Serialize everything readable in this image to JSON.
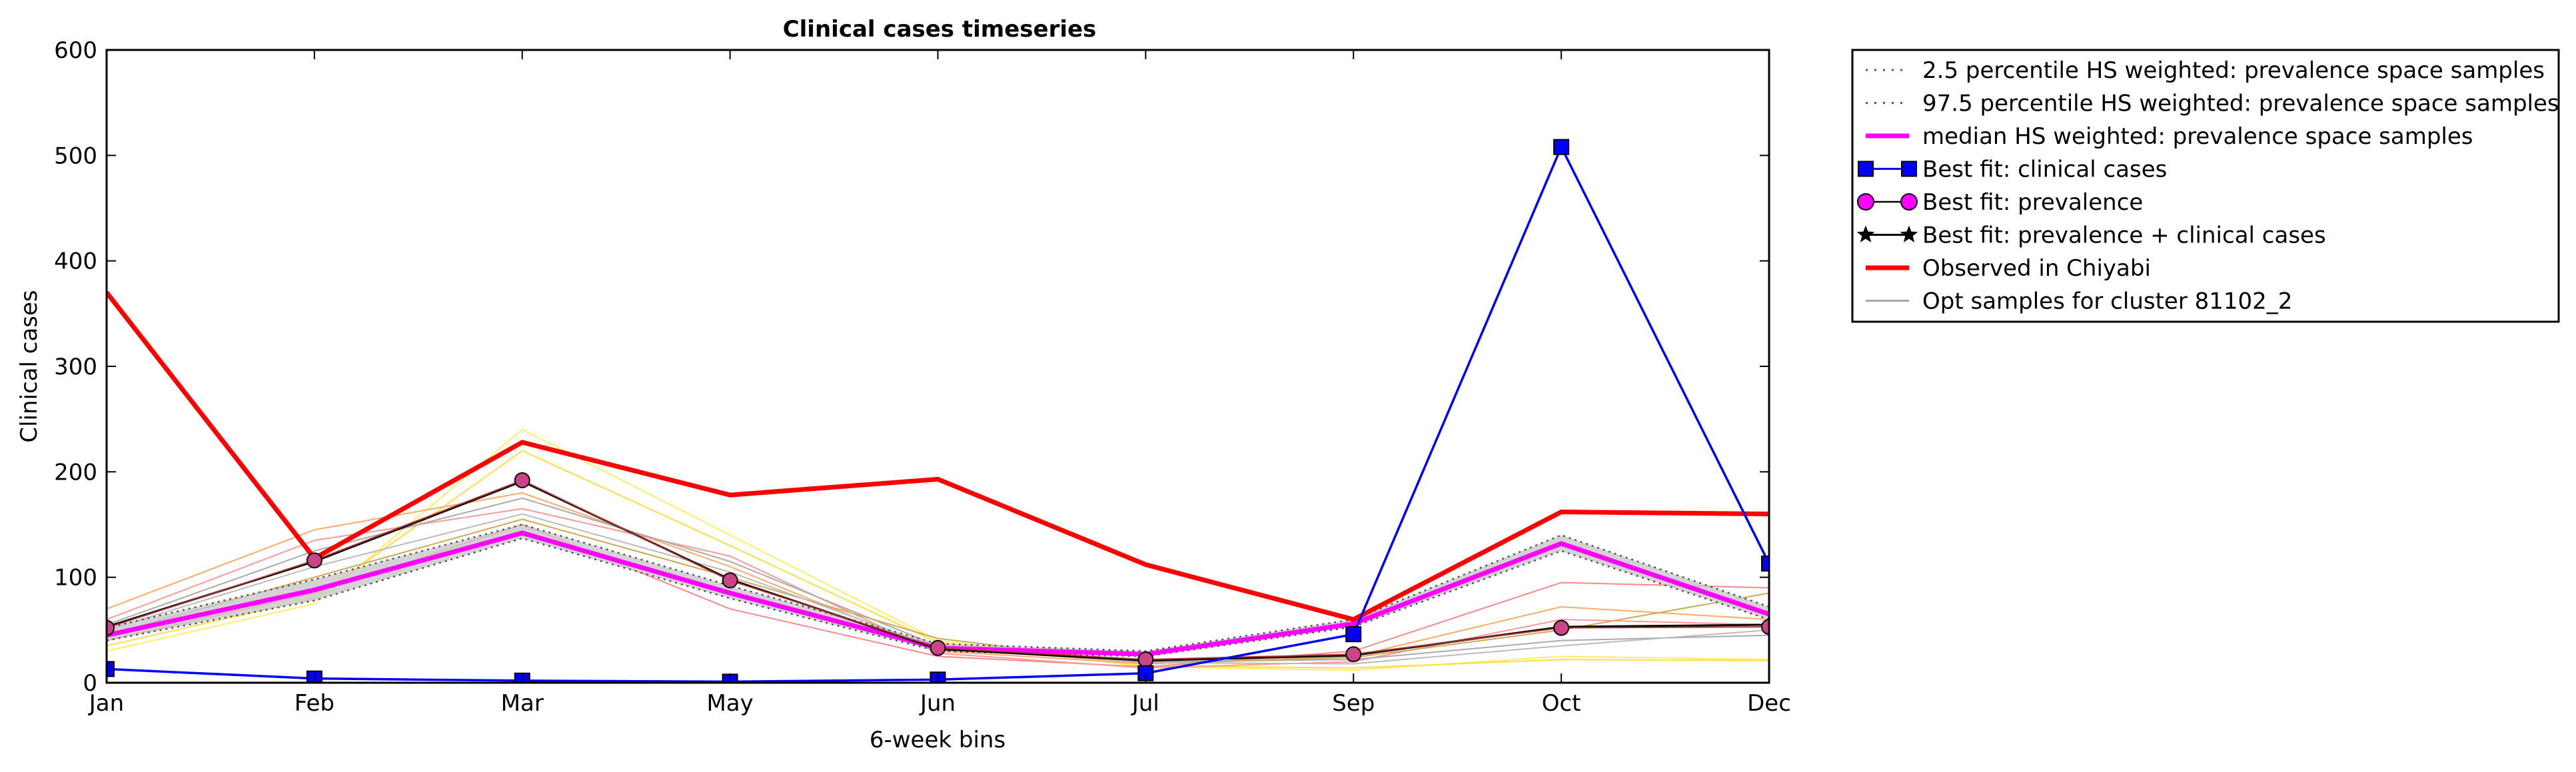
{
  "chart_data": {
    "type": "line",
    "title": "Clinical cases timeseries",
    "xlabel": "6-week bins",
    "ylabel": "Clinical cases",
    "categories": [
      "Jan",
      "Feb",
      "Mar",
      "May",
      "Jun",
      "Jul",
      "Sep",
      "Oct",
      "Dec"
    ],
    "ylim": [
      0,
      600
    ],
    "yticks": [
      "0",
      "100",
      "200",
      "300",
      "400",
      "500",
      "600"
    ],
    "grid": false,
    "legend_position": "outside-right-top",
    "legend": [
      {
        "label": "2.5 percentile HS weighted: prevalence space samples",
        "style": "dotted",
        "color": "#555555"
      },
      {
        "label": "97.5 percentile HS weighted: prevalence space samples",
        "style": "dotted",
        "color": "#555555"
      },
      {
        "label": "median HS weighted: prevalence space samples",
        "style": "solid-thick",
        "color": "#ff00ff"
      },
      {
        "label": "Best fit: clinical cases",
        "style": "square-marker",
        "color": "#0000ff"
      },
      {
        "label": "Best fit: prevalence",
        "style": "circle-marker",
        "color": "#ff00ff"
      },
      {
        "label": "Best fit: prevalence + clinical cases",
        "style": "star-marker",
        "color": "#000000"
      },
      {
        "label": "Observed in Chiyabi",
        "style": "solid-thick",
        "color": "#ff0000"
      },
      {
        "label": "Opt samples for cluster 81102_2",
        "style": "solid-thin",
        "color": "#999999"
      }
    ],
    "series": [
      {
        "name": "Observed in Chiyabi",
        "color": "#ff0000",
        "values": [
          370,
          118,
          228,
          178,
          193,
          112,
          60,
          162,
          160
        ]
      },
      {
        "name": "Best fit: clinical cases",
        "color": "#0000ff",
        "values": [
          13,
          4,
          2,
          1,
          3,
          9,
          46,
          508,
          113
        ]
      },
      {
        "name": "Best fit: prevalence",
        "color": "#ff00ff",
        "values": [
          52,
          116,
          192,
          97,
          33,
          22,
          27,
          52,
          53
        ]
      },
      {
        "name": "Best fit: prevalence + clinical cases",
        "color": "#000000",
        "values": [
          53,
          115,
          191,
          98,
          32,
          21,
          26,
          53,
          55
        ]
      },
      {
        "name": "median HS weighted: prevalence space samples",
        "color": "#ff00ff",
        "values": [
          45,
          88,
          142,
          85,
          33,
          27,
          56,
          132,
          65
        ]
      },
      {
        "name": "2.5 percentile HS weighted: prevalence space samples",
        "color": "#555555",
        "values": [
          40,
          78,
          137,
          80,
          30,
          25,
          53,
          125,
          60
        ]
      },
      {
        "name": "97.5 percentile HS weighted: prevalence space samples",
        "color": "#555555",
        "values": [
          52,
          98,
          150,
          92,
          37,
          30,
          60,
          140,
          72
        ]
      }
    ],
    "samples": [
      {
        "color": "#ffee66",
        "values": [
          30,
          75,
          240,
          140,
          40,
          15,
          12,
          25,
          22
        ]
      },
      {
        "color": "#ffdd44",
        "values": [
          35,
          80,
          220,
          130,
          38,
          16,
          14,
          22,
          21
        ]
      },
      {
        "color": "#ff8888",
        "values": [
          40,
          85,
          150,
          70,
          25,
          15,
          30,
          95,
          90
        ]
      },
      {
        "color": "#ffaa66",
        "values": [
          70,
          145,
          180,
          110,
          30,
          18,
          25,
          72,
          60
        ]
      },
      {
        "color": "#ff9999",
        "values": [
          60,
          135,
          165,
          120,
          28,
          14,
          20,
          60,
          55
        ]
      },
      {
        "color": "#aaaaaa",
        "values": [
          55,
          125,
          175,
          115,
          35,
          20,
          22,
          40,
          45
        ]
      },
      {
        "color": "#ccaa55",
        "values": [
          45,
          100,
          155,
          100,
          42,
          18,
          24,
          50,
          85
        ]
      },
      {
        "color": "#bbbbbb",
        "values": [
          50,
          110,
          160,
          105,
          33,
          19,
          18,
          35,
          50
        ]
      }
    ]
  }
}
